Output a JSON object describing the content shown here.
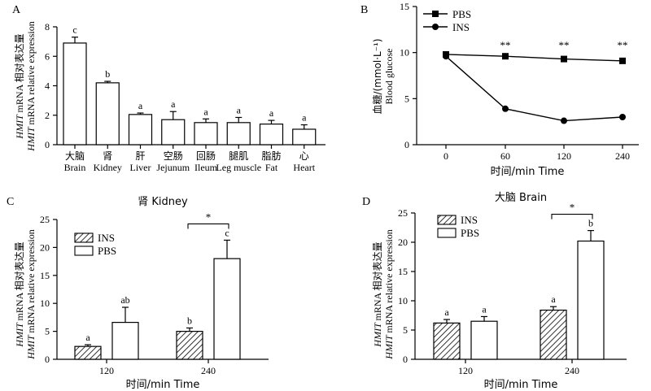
{
  "chart_data": [
    {
      "panel": "A",
      "type": "bar",
      "title": "",
      "ylabel_cn": "HMIT mRNA 相对表达量",
      "ylabel_en": "HMIT mRNA relative expression",
      "ylim": [
        0,
        8
      ],
      "yticks": [
        0,
        2,
        4,
        6,
        8
      ],
      "categories_cn": [
        "大脑",
        "肾",
        "肝",
        "空肠",
        "回肠",
        "腿肌",
        "脂肪",
        "心"
      ],
      "categories_en": [
        "Brain",
        "Kidney",
        "Liver",
        "Jejunum",
        "Ileum",
        "Leg muscle",
        "Fat",
        "Heart"
      ],
      "values": [
        6.9,
        4.2,
        2.05,
        1.7,
        1.5,
        1.5,
        1.4,
        1.05
      ],
      "errors": [
        0.4,
        0.1,
        0.1,
        0.55,
        0.25,
        0.35,
        0.25,
        0.3
      ],
      "letters": [
        "c",
        "b",
        "a",
        "a",
        "a",
        "a",
        "a",
        "a"
      ]
    },
    {
      "panel": "B",
      "type": "line",
      "ylabel_cn": "血糖/(mmol·L⁻¹)",
      "ylabel_en": "Blood glucose",
      "xlabel": "时间/min  Time",
      "ylim": [
        0,
        15
      ],
      "yticks": [
        0,
        5,
        10,
        15
      ],
      "x": [
        "0",
        "60",
        "120",
        "240"
      ],
      "series": [
        {
          "name": "PBS",
          "marker": "square",
          "values": [
            9.8,
            9.6,
            9.3,
            9.1
          ]
        },
        {
          "name": "INS",
          "marker": "circle",
          "values": [
            9.6,
            3.9,
            2.6,
            3.0
          ]
        }
      ],
      "significance": [
        "",
        "**",
        "**",
        "**"
      ]
    },
    {
      "panel": "C",
      "type": "bar",
      "title": "肾 Kidney",
      "ylabel_cn": "HMIT mRNA 相对表达量",
      "ylabel_en": "HMIT mRNA relative expression",
      "xlabel": "时间/min  Time",
      "ylim": [
        0,
        25
      ],
      "yticks": [
        0,
        5,
        10,
        15,
        20,
        25
      ],
      "categories": [
        "120",
        "240"
      ],
      "series": [
        {
          "name": "INS",
          "pattern": "hatched",
          "values": [
            2.3,
            5.0
          ],
          "errors": [
            0.3,
            0.6
          ],
          "letters": [
            "a",
            "b"
          ]
        },
        {
          "name": "PBS",
          "pattern": "white",
          "values": [
            6.6,
            18.0
          ],
          "errors": [
            2.7,
            3.3
          ],
          "letters": [
            "ab",
            "c"
          ]
        }
      ],
      "bracket": {
        "category": "240",
        "label": "*"
      }
    },
    {
      "panel": "D",
      "type": "bar",
      "title": "大脑 Brain",
      "ylabel_cn": "HMIT mRNA 相对表达量",
      "ylabel_en": "HMIT mRNA relative expression",
      "xlabel": "时间/min  Time",
      "ylim": [
        0,
        25
      ],
      "yticks": [
        0,
        5,
        10,
        15,
        20,
        25
      ],
      "categories": [
        "120",
        "240"
      ],
      "series": [
        {
          "name": "INS",
          "pattern": "hatched",
          "values": [
            6.2,
            8.4
          ],
          "errors": [
            0.6,
            0.6
          ],
          "letters": [
            "a",
            "a"
          ]
        },
        {
          "name": "PBS",
          "pattern": "white",
          "values": [
            6.5,
            20.2
          ],
          "errors": [
            0.8,
            1.8
          ],
          "letters": [
            "a",
            "b"
          ]
        }
      ],
      "bracket": {
        "category": "240",
        "label": "*"
      }
    }
  ]
}
